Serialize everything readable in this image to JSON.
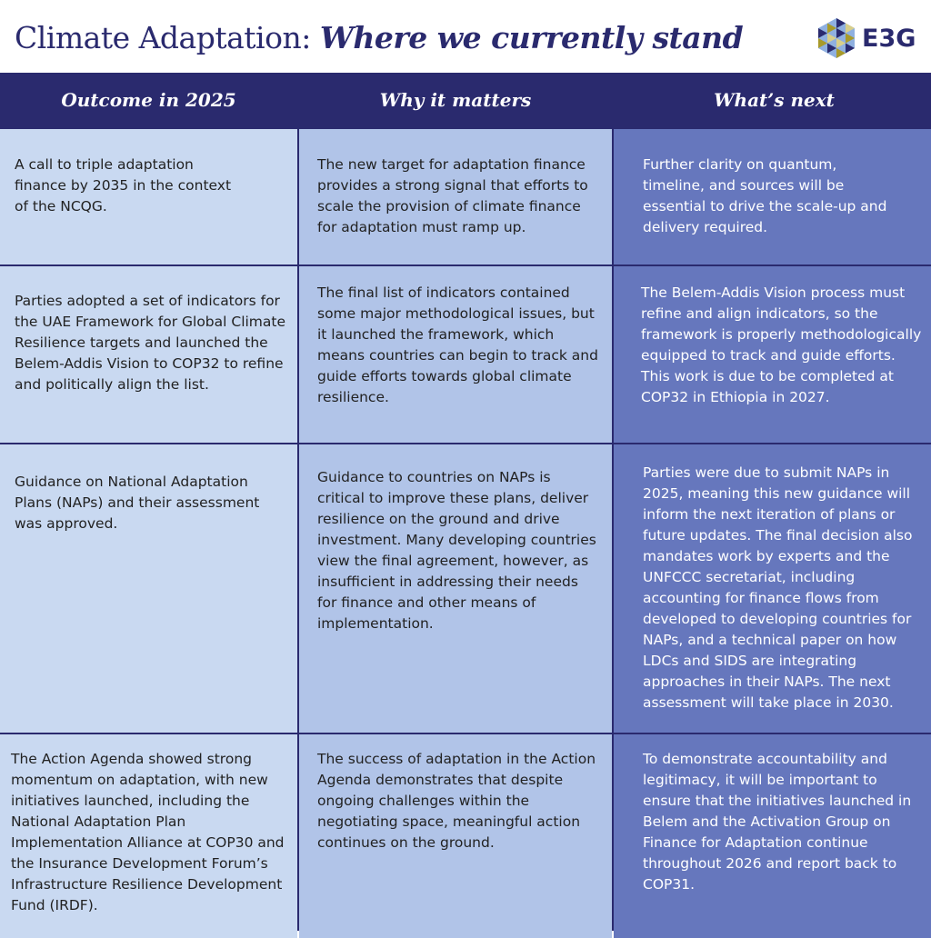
{
  "header": {
    "title_plain": "Climate Adaptation:",
    "title_emphasis": "Where we currently stand",
    "logo_text": "E3G"
  },
  "colors": {
    "navy": "#2a2a6e",
    "col1": "#c9d9f1",
    "col2": "#b1c4e8",
    "col3": "#6677bd"
  },
  "table": {
    "columns": [
      "Outcome in 2025",
      "Why it matters",
      "What’s next"
    ],
    "rows": [
      [
        "A call to triple adaptation finance by 2035 in the context of the NCQG.",
        "The new target for adaptation finance provides a strong signal that efforts to scale the provision of climate finance for adaptation must ramp up.",
        "Further clarity on quantum, timeline, and sources will be essential to drive the scale-up and delivery required."
      ],
      [
        "Parties adopted a set of indicators for the UAE Framework for Global Climate Resilience targets and launched the Belem-Addis Vision to COP32 to refine and politically align the list.",
        "The final list of indicators contained some major methodological issues, but it launched the framework, which means countries can begin to track and guide efforts towards global climate resilience.",
        "The Belem-Addis Vision process must refine and align indicators, so the framework is properly methodologically equipped to track and guide efforts. This work is due to be completed at COP32 in Ethiopia in 2027."
      ],
      [
        "Guidance on National Adaptation Plans (NAPs) and their assessment was approved.",
        "Guidance to countries on NAPs is critical to improve these plans, deliver resilience on the ground and drive investment. Many developing countries view the final agreement, however, as insufficient in addressing their needs for finance and other means of implementation.",
        "Parties were due to submit NAPs in 2025, meaning this new guidance will inform the next iteration of plans or future updates. The final decision also mandates work by experts and the UNFCCC secretariat, including accounting for finance flows from developed to developing countries for NAPs, and a technical paper on how LDCs and SIDS are integrating approaches in their NAPs. The next assessment will take place in 2030."
      ],
      [
        "The Action Agenda showed strong momentum on adaptation, with new initiatives launched, including the National Adaptation Plan Implementation Alliance at COP30 and the Insurance Development Forum’s Infrastructure Resilience Development Fund (IRDF).",
        "The success of adaptation in the Action Agenda demonstrates that despite ongoing challenges within the negotiating space, meaningful action continues on the ground.",
        "To demonstrate accountability and legitimacy, it will be important to ensure that the initiatives launched in Belem and the Activation Group on Finance for Adaptation continue throughout 2026 and report back to COP31."
      ]
    ]
  }
}
